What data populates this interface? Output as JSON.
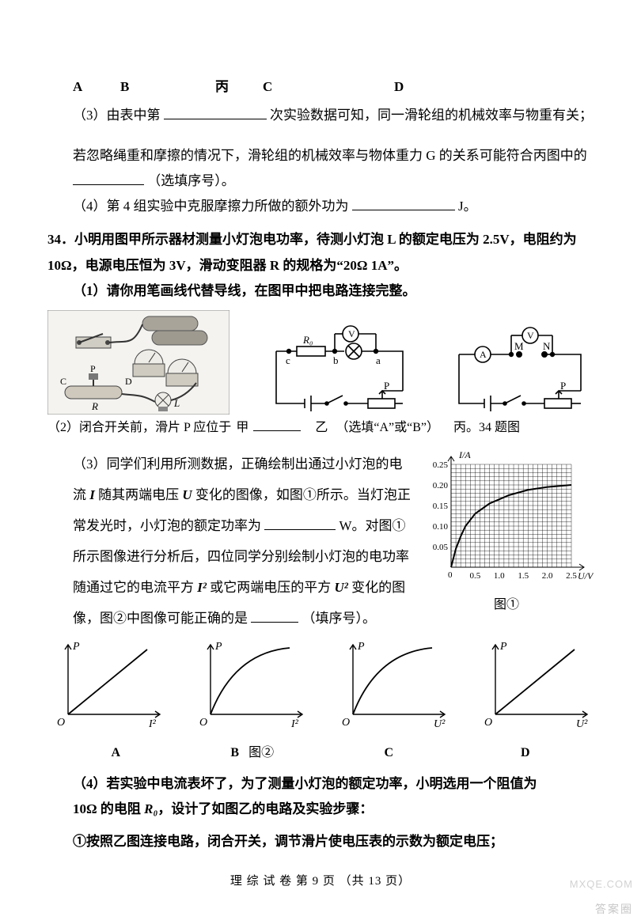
{
  "row_abcd": {
    "A": "A",
    "B": "B",
    "mid": "丙",
    "C": "C",
    "D": "D"
  },
  "line3_a": "（3）由表中第",
  "line3_b": "次实验数据可知，同一滑轮组的机械效率与物重有关；",
  "line4": "若忽略绳重和摩擦的情况下，滑轮组的机械效率与物体重力 G 的关系可能符合丙图中的",
  "line4b": "（选填序号）。",
  "line5_a": "（4）第 4 组实验中克服摩擦力所做的额外功为",
  "line5_b": "J。",
  "q34_num": "34．",
  "q34_a": "小明用图甲所示器材测量小灯泡电功率，待测小灯泡 L 的额定电压为 2.5V，电阻约为 10Ω，电源电压恒为 3V，滑动变阻器 R 的规格为“20Ω  1A”。",
  "q34_1": "（1）请你用笔画线代替导线，在图甲中把电路连接完整。",
  "cap_jia": "甲",
  "cap_yi": "乙",
  "cap_bing_q": "丙。34 题图",
  "q34_2a": "（2）闭合开关前，滑片 P 应位于",
  "q34_2b": "（选填“A”或“B”）",
  "q34_3a": "（3）同学们利用所测数据，正确绘制出通过小灯泡的电流 ",
  "q34_3a2": " 随其两端电压 ",
  "q34_3a3": " 变化的图像，如图①所示。当灯泡正常发光时，小灯泡的额定功率为",
  "q34_3b": "W。对图①所示图像进行分析后，四位同学分别绘制小灯泡的电功率  随通过它的电流平方  ",
  "q34_3c": " 或它两端电压的平方  ",
  "q34_3d": " 变化的图像，图②中图像可能正确的是",
  "q34_3e": "（填序号）。",
  "sym_I": "I",
  "sym_U": "U",
  "sym_P": "P",
  "sym_I2": "I²",
  "sym_U2": "U²",
  "graph1": {
    "ylab": "I/A",
    "xlab": "U/V",
    "xticks": [
      0,
      0.5,
      1.0,
      1.5,
      2.0,
      2.5
    ],
    "yticks": [
      0,
      0.05,
      0.1,
      0.15,
      0.2,
      0.25
    ],
    "curve": [
      [
        0,
        0
      ],
      [
        0.1,
        0.045
      ],
      [
        0.2,
        0.075
      ],
      [
        0.3,
        0.1
      ],
      [
        0.5,
        0.13
      ],
      [
        0.8,
        0.155
      ],
      [
        1.2,
        0.175
      ],
      [
        1.6,
        0.188
      ],
      [
        2.0,
        0.195
      ],
      [
        2.5,
        0.2
      ]
    ],
    "cap": "图①"
  },
  "mini": {
    "A": {
      "x": "I²",
      "shape": "straight",
      "label": "A"
    },
    "B": {
      "x": "I²",
      "shape": "concave_down",
      "label": "B"
    },
    "C": {
      "x": "U²",
      "shape": "concave_down",
      "label": "C"
    },
    "D": {
      "x": "U²",
      "shape": "straight",
      "label": "D"
    },
    "ylab": "P",
    "cap": "图②"
  },
  "q34_4a": "（4）若实验中电流表坏了，为了测量小灯泡的额定功率，小明选用一个阻值为",
  "q34_4b": "10Ω 的电阻 ",
  "q34_4c": "，设计了如图乙的电路及实验步骤：",
  "q34_4_R0": "R₀",
  "q34_step1": "①按照乙图连接电路，闭合开关，调节滑片使电压表的示数为额定电压；",
  "footer": "理 综 试 卷    第  9  页  （共  13  页）",
  "wm1": "答案圈",
  "wm2": "MXQE.COM",
  "circ_jia": {
    "labels": {
      "C": "C",
      "D": "D",
      "P": "P",
      "R": "R",
      "L": "L"
    }
  },
  "circ_yi": {
    "labels": {
      "V": "V",
      "R0": "R₀",
      "c": "c",
      "b": "b",
      "a": "a",
      "P": "P"
    }
  },
  "circ_bing": {
    "labels": {
      "V": "V",
      "A": "A",
      "M": "M",
      "N": "N",
      "P": "P"
    }
  }
}
